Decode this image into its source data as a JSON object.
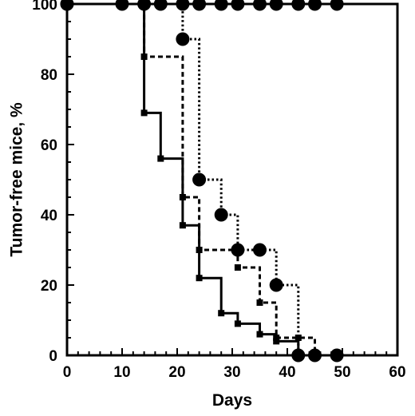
{
  "chart_data": {
    "type": "line",
    "chart_style": "step survival curves",
    "xlabel": "Days",
    "ylabel": "Tumor-free mice, %",
    "xlim": [
      0,
      60
    ],
    "ylim": [
      0,
      100
    ],
    "xticks": [
      0,
      10,
      20,
      30,
      40,
      50,
      60
    ],
    "yticks": [
      0,
      20,
      40,
      60,
      80,
      100
    ],
    "grid": false,
    "legend": "none",
    "series": [
      {
        "line_style": "solid",
        "marker": "circle",
        "color": "#000000",
        "x": [
          0,
          10,
          14,
          17,
          21,
          24,
          28,
          31,
          35,
          38,
          42,
          45,
          49
        ],
        "y": [
          100,
          100,
          100,
          100,
          100,
          100,
          100,
          100,
          100,
          100,
          100,
          100,
          100
        ]
      },
      {
        "line_style": "dotted",
        "marker": "circle",
        "color": "#000000",
        "x": [
          0,
          21,
          24,
          28,
          31,
          35,
          38,
          42,
          45,
          49
        ],
        "y": [
          100,
          90,
          50,
          40,
          30,
          30,
          20,
          0,
          0,
          0
        ]
      },
      {
        "line_style": "dashed",
        "marker": "square",
        "color": "#000000",
        "x": [
          0,
          14,
          21,
          24,
          31,
          35,
          38,
          42,
          45
        ],
        "y": [
          100,
          85,
          45,
          30,
          25,
          15,
          5,
          5,
          0
        ]
      },
      {
        "line_style": "solid",
        "marker": "square",
        "color": "#000000",
        "x": [
          0,
          14,
          17,
          21,
          24,
          28,
          31,
          35,
          38,
          42
        ],
        "y": [
          100,
          69,
          56,
          37,
          22,
          12,
          9,
          6,
          4,
          0
        ]
      }
    ]
  }
}
